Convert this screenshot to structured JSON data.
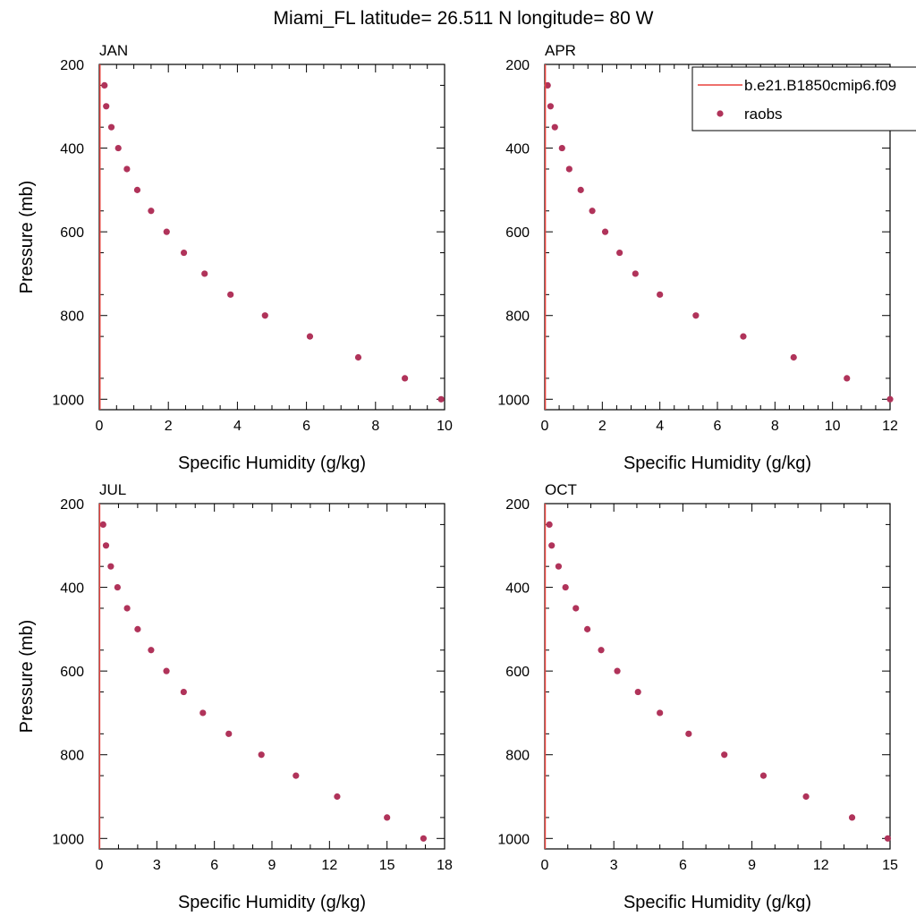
{
  "title": "Miami_FL  latitude= 26.511 N longitude= 80 W",
  "colors": {
    "model_line": "#e8413c",
    "raobs_marker": "#b0335a",
    "axis": "#000000"
  },
  "legend": {
    "placement": "top-right",
    "entries": [
      {
        "label": "b.e21.B1850cmip6.f09",
        "symbol": "line"
      },
      {
        "label": "raobs",
        "symbol": "marker"
      }
    ]
  },
  "chart_data": [
    {
      "type": "scatter",
      "panel_label": "JAN",
      "xlabel": "Specific Humidity (g/kg)",
      "ylabel": "Pressure (mb)",
      "xlim": [
        0,
        10
      ],
      "ylim": [
        200,
        1025
      ],
      "y_inverted": true,
      "xticks": [
        0,
        2,
        4,
        6,
        8,
        10
      ],
      "yticks": [
        200,
        400,
        600,
        800,
        1000
      ],
      "series": [
        {
          "name": "raobs",
          "points": [
            [
              0.15,
              250
            ],
            [
              0.2,
              300
            ],
            [
              0.35,
              350
            ],
            [
              0.55,
              400
            ],
            [
              0.8,
              450
            ],
            [
              1.1,
              500
            ],
            [
              1.5,
              550
            ],
            [
              1.95,
              600
            ],
            [
              2.45,
              650
            ],
            [
              3.05,
              700
            ],
            [
              3.8,
              750
            ],
            [
              4.8,
              800
            ],
            [
              6.1,
              850
            ],
            [
              7.5,
              900
            ],
            [
              8.85,
              950
            ],
            [
              9.9,
              1000
            ]
          ]
        },
        {
          "name": "b.e21.B1850cmip6.f09",
          "points": [
            [
              0.02,
              200
            ],
            [
              0.02,
              1025
            ]
          ]
        }
      ]
    },
    {
      "type": "scatter",
      "panel_label": "APR",
      "xlabel": "Specific Humidity (g/kg)",
      "ylabel": "",
      "xlim": [
        0,
        12
      ],
      "ylim": [
        200,
        1025
      ],
      "y_inverted": true,
      "xticks": [
        0,
        2,
        4,
        6,
        8,
        10,
        12
      ],
      "yticks": [
        200,
        400,
        600,
        800,
        1000
      ],
      "series": [
        {
          "name": "raobs",
          "points": [
            [
              0.1,
              250
            ],
            [
              0.2,
              300
            ],
            [
              0.35,
              350
            ],
            [
              0.6,
              400
            ],
            [
              0.85,
              450
            ],
            [
              1.25,
              500
            ],
            [
              1.65,
              550
            ],
            [
              2.1,
              600
            ],
            [
              2.6,
              650
            ],
            [
              3.15,
              700
            ],
            [
              4.0,
              750
            ],
            [
              5.25,
              800
            ],
            [
              6.9,
              850
            ],
            [
              8.65,
              900
            ],
            [
              10.5,
              950
            ],
            [
              12.0,
              1000
            ]
          ]
        },
        {
          "name": "b.e21.B1850cmip6.f09",
          "points": [
            [
              0.02,
              200
            ],
            [
              0.02,
              1025
            ]
          ]
        }
      ]
    },
    {
      "type": "scatter",
      "panel_label": "JUL",
      "xlabel": "Specific Humidity (g/kg)",
      "ylabel": "Pressure (mb)",
      "xlim": [
        0,
        18
      ],
      "ylim": [
        200,
        1025
      ],
      "y_inverted": true,
      "xticks": [
        0,
        3,
        6,
        9,
        12,
        15,
        18
      ],
      "yticks": [
        200,
        400,
        600,
        800,
        1000
      ],
      "series": [
        {
          "name": "raobs",
          "points": [
            [
              0.2,
              250
            ],
            [
              0.35,
              300
            ],
            [
              0.6,
              350
            ],
            [
              0.95,
              400
            ],
            [
              1.45,
              450
            ],
            [
              2.0,
              500
            ],
            [
              2.7,
              550
            ],
            [
              3.5,
              600
            ],
            [
              4.4,
              650
            ],
            [
              5.4,
              700
            ],
            [
              6.75,
              750
            ],
            [
              8.45,
              800
            ],
            [
              10.25,
              850
            ],
            [
              12.4,
              900
            ],
            [
              15.0,
              950
            ],
            [
              16.9,
              1000
            ]
          ]
        },
        {
          "name": "b.e21.B1850cmip6.f09",
          "points": [
            [
              0.02,
              200
            ],
            [
              0.02,
              1025
            ]
          ]
        }
      ]
    },
    {
      "type": "scatter",
      "panel_label": "OCT",
      "xlabel": "Specific Humidity (g/kg)",
      "ylabel": "",
      "xlim": [
        0,
        15
      ],
      "ylim": [
        200,
        1025
      ],
      "y_inverted": true,
      "xticks": [
        0,
        3,
        6,
        9,
        12,
        15
      ],
      "yticks": [
        200,
        400,
        600,
        800,
        1000
      ],
      "series": [
        {
          "name": "raobs",
          "points": [
            [
              0.2,
              250
            ],
            [
              0.3,
              300
            ],
            [
              0.6,
              350
            ],
            [
              0.9,
              400
            ],
            [
              1.35,
              450
            ],
            [
              1.85,
              500
            ],
            [
              2.45,
              550
            ],
            [
              3.15,
              600
            ],
            [
              4.05,
              650
            ],
            [
              5.0,
              700
            ],
            [
              6.25,
              750
            ],
            [
              7.8,
              800
            ],
            [
              9.5,
              850
            ],
            [
              11.35,
              900
            ],
            [
              13.35,
              950
            ],
            [
              14.9,
              1000
            ]
          ]
        },
        {
          "name": "b.e21.B1850cmip6.f09",
          "points": [
            [
              0.02,
              200
            ],
            [
              0.02,
              1025
            ]
          ]
        }
      ]
    }
  ]
}
